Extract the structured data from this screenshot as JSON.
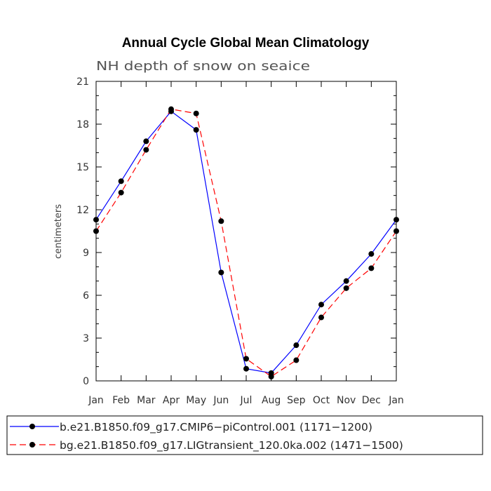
{
  "chart_data": {
    "type": "line",
    "title": "Annual Cycle Global Mean Climatology",
    "subtitle": "NH depth of snow on seaice",
    "xlabel": "",
    "ylabel": "centimeters",
    "categories": [
      "Jan",
      "Feb",
      "Mar",
      "Apr",
      "May",
      "Jun",
      "Jul",
      "Aug",
      "Sep",
      "Oct",
      "Nov",
      "Dec",
      "Jan"
    ],
    "ylim": [
      0,
      21
    ],
    "yticks": [
      0,
      3,
      6,
      9,
      12,
      15,
      18,
      21
    ],
    "grid": false,
    "legend_position": "bottom",
    "series": [
      {
        "name": "b.e21.B1850.f09_g17.CMIP6−piControl.001 (1171−1200)",
        "color": "#0000ff",
        "dash": "solid",
        "marker": "filled-circle",
        "values": [
          11.3,
          14.0,
          16.8,
          18.9,
          17.6,
          7.6,
          0.85,
          0.55,
          2.5,
          5.35,
          7.0,
          8.9,
          11.3
        ]
      },
      {
        "name": "bg.e21.B1850.f09_g17.LIGtransient_120.0ka.002 (1471−1500)",
        "color": "#ff0000",
        "dash": "dashed",
        "marker": "filled-circle",
        "values": [
          10.5,
          13.2,
          16.2,
          19.05,
          18.75,
          11.2,
          1.55,
          0.3,
          1.45,
          4.45,
          6.5,
          7.9,
          10.5
        ]
      }
    ]
  }
}
